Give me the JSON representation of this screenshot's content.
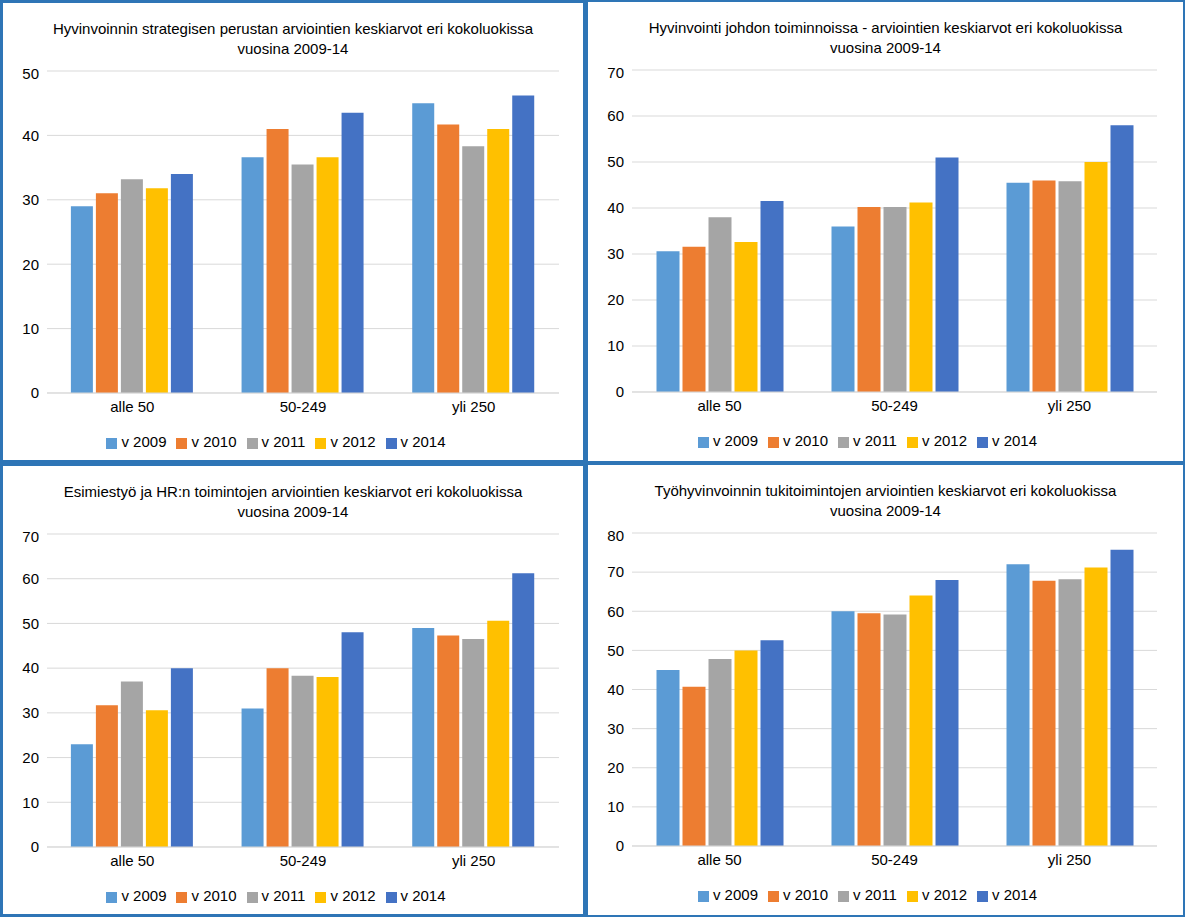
{
  "chart_data": [
    {
      "type": "bar",
      "title": "Hyvinvoinnin strategisen perustan arviointien keskiarvot eri kokoluokissa vuosina 2009-14",
      "categories": [
        "alle 50",
        "50-249",
        "yli 250"
      ],
      "series": [
        {
          "name": "v 2009",
          "color": "#5b9bd5",
          "values": [
            29,
            36.6,
            45
          ]
        },
        {
          "name": "v 2010",
          "color": "#ed7d31",
          "values": [
            31,
            41,
            41.7
          ]
        },
        {
          "name": "v 2011",
          "color": "#a5a5a5",
          "values": [
            33.2,
            35.5,
            38.3
          ]
        },
        {
          "name": "v 2012",
          "color": "#ffc000",
          "values": [
            31.8,
            36.6,
            41
          ]
        },
        {
          "name": "v 2014",
          "color": "#4472c4",
          "values": [
            34,
            43.5,
            46.2
          ]
        }
      ],
      "ylim": [
        0,
        50
      ],
      "yticks": [
        0,
        10,
        20,
        30,
        40,
        50
      ],
      "grid": true,
      "legend": "bottom"
    },
    {
      "type": "bar",
      "title": "Hyvinvointi johdon toiminnoissa - arviointien keskiarvot eri kokoluokissa vuosina 2009-14",
      "categories": [
        "alle 50",
        "50-249",
        "yli 250"
      ],
      "series": [
        {
          "name": "v 2009",
          "color": "#5b9bd5",
          "values": [
            30.6,
            36,
            45.5
          ]
        },
        {
          "name": "v 2010",
          "color": "#ed7d31",
          "values": [
            31.6,
            40.2,
            46
          ]
        },
        {
          "name": "v 2011",
          "color": "#a5a5a5",
          "values": [
            38,
            40.2,
            45.8
          ]
        },
        {
          "name": "v 2012",
          "color": "#ffc000",
          "values": [
            32.6,
            41.2,
            50
          ]
        },
        {
          "name": "v 2014",
          "color": "#4472c4",
          "values": [
            41.5,
            51,
            58
          ]
        }
      ],
      "ylim": [
        0,
        70
      ],
      "yticks": [
        0,
        10,
        20,
        30,
        40,
        50,
        60,
        70
      ],
      "grid": true,
      "legend": "bottom"
    },
    {
      "type": "bar",
      "title": "Esimiestyö ja HR:n toimintojen arviointien keskiarvot eri kokoluokissa vuosina 2009-14",
      "categories": [
        "alle 50",
        "50-249",
        "yli 250"
      ],
      "series": [
        {
          "name": "v 2009",
          "color": "#5b9bd5",
          "values": [
            23,
            31,
            49
          ]
        },
        {
          "name": "v 2010",
          "color": "#ed7d31",
          "values": [
            31.7,
            40,
            47.3
          ]
        },
        {
          "name": "v 2011",
          "color": "#a5a5a5",
          "values": [
            37,
            38.3,
            46.5
          ]
        },
        {
          "name": "v 2012",
          "color": "#ffc000",
          "values": [
            30.6,
            38,
            50.6
          ]
        },
        {
          "name": "v 2014",
          "color": "#4472c4",
          "values": [
            40,
            48,
            61.2
          ]
        }
      ],
      "ylim": [
        0,
        70
      ],
      "yticks": [
        0,
        10,
        20,
        30,
        40,
        50,
        60,
        70
      ],
      "grid": true,
      "legend": "bottom"
    },
    {
      "type": "bar",
      "title": "Työhyvinvoinnin tukitoimintojen arviointien keskiarvot eri kokoluokissa vuosina 2009-14",
      "categories": [
        "alle 50",
        "50-249",
        "yli 250"
      ],
      "series": [
        {
          "name": "v 2009",
          "color": "#5b9bd5",
          "values": [
            45,
            60,
            72
          ]
        },
        {
          "name": "v 2010",
          "color": "#ed7d31",
          "values": [
            40.7,
            59.5,
            67.8
          ]
        },
        {
          "name": "v 2011",
          "color": "#a5a5a5",
          "values": [
            47.8,
            59.2,
            68.2
          ]
        },
        {
          "name": "v 2012",
          "color": "#ffc000",
          "values": [
            50,
            64,
            71.2
          ]
        },
        {
          "name": "v 2014",
          "color": "#4472c4",
          "values": [
            52.6,
            68,
            75.7
          ]
        }
      ],
      "ylim": [
        0,
        80
      ],
      "yticks": [
        0,
        10,
        20,
        30,
        40,
        50,
        60,
        70,
        80
      ],
      "grid": true,
      "legend": "bottom"
    }
  ]
}
